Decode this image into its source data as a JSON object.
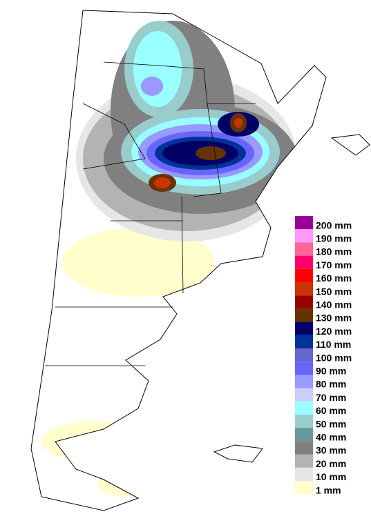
{
  "legend": {
    "items": [
      {
        "label": "200 mm",
        "color": "#990099"
      },
      {
        "label": "190 mm",
        "color": "#ff99ff"
      },
      {
        "label": "180 mm",
        "color": "#ff6699"
      },
      {
        "label": "170 mm",
        "color": "#ff0066"
      },
      {
        "label": "160 mm",
        "color": "#ff0000"
      },
      {
        "label": "150 mm",
        "color": "#cc3300"
      },
      {
        "label": "140 mm",
        "color": "#990000"
      },
      {
        "label": "130 mm",
        "color": "#663300"
      },
      {
        "label": "120 mm",
        "color": "#000066"
      },
      {
        "label": "110 mm",
        "color": "#003399"
      },
      {
        "label": "100 mm",
        "color": "#6666cc"
      },
      {
        "label": "90 mm",
        "color": "#6666ff"
      },
      {
        "label": "80 mm",
        "color": "#9999ff"
      },
      {
        "label": "70 mm",
        "color": "#ccccff"
      },
      {
        "label": "60 mm",
        "color": "#99ffff"
      },
      {
        "label": "50 mm",
        "color": "#99cccc"
      },
      {
        "label": "40 mm",
        "color": "#669999"
      },
      {
        "label": "30 mm",
        "color": "#808080"
      },
      {
        "label": "20 mm",
        "color": "#b3b3b3"
      },
      {
        "label": "10 mm",
        "color": "#e6e6e6"
      },
      {
        "label": "1 mm",
        "color": "#ffffcc"
      }
    ]
  }
}
